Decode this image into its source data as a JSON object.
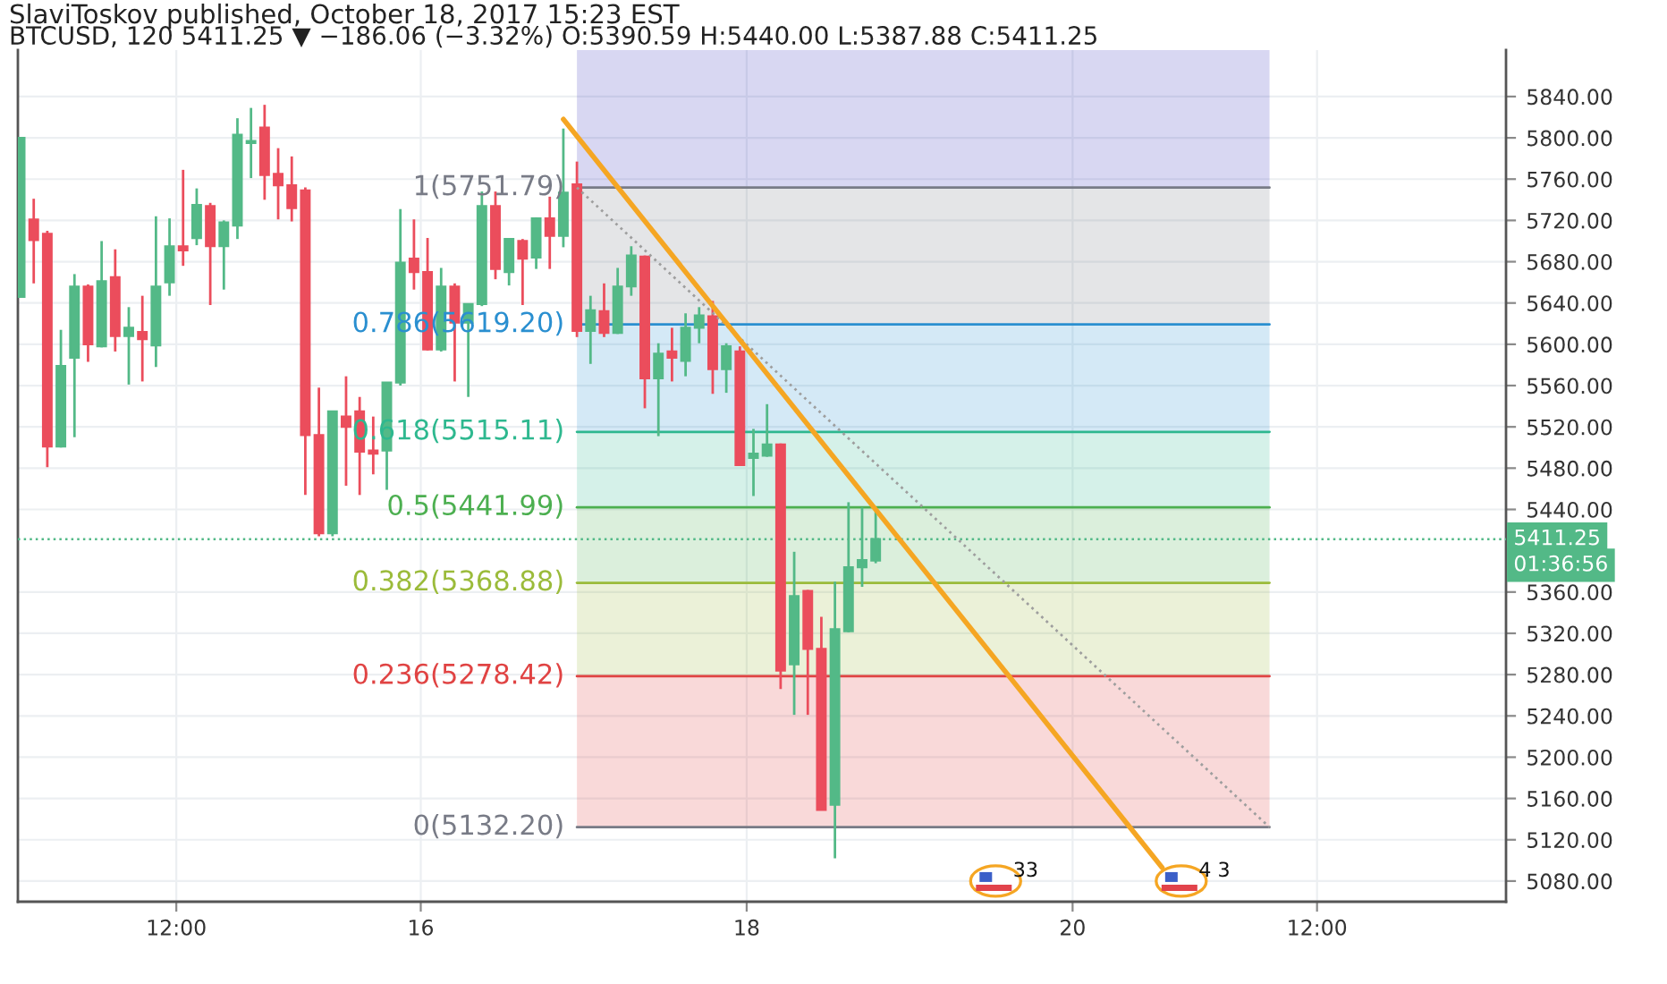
{
  "chart_data": {
    "type": "candlestick",
    "title": "SlaviToskov published, October 18, 2017 15:23 EST",
    "subtitle": "BTCUSD, 120 5411.25 ▼ −186.06 (−3.32%) O:5390.59 H:5440.00 L:5387.88 C:5411.25",
    "x": [
      "2017-10-13T13:00",
      "2017-10-13T15:00",
      "2017-10-13T17:00",
      "2017-10-13T19:00",
      "2017-10-13T21:00",
      "2017-10-13T23:00",
      "2017-10-14T01:00",
      "2017-10-14T03:00",
      "2017-10-14T05:00",
      "2017-10-14T07:00",
      "2017-10-14T09:00",
      "2017-10-14T11:00",
      "2017-10-14T13:00",
      "2017-10-14T15:00",
      "2017-10-14T17:00",
      "2017-10-14T19:00",
      "2017-10-14T21:00",
      "2017-10-14T23:00",
      "2017-10-15T01:00",
      "2017-10-15T03:00",
      "2017-10-15T05:00",
      "2017-10-15T07:00",
      "2017-10-15T09:00",
      "2017-10-15T11:00",
      "2017-10-15T13:00",
      "2017-10-15T15:00",
      "2017-10-15T17:00",
      "2017-10-15T19:00",
      "2017-10-15T21:00",
      "2017-10-15T23:00",
      "2017-10-16T01:00",
      "2017-10-16T03:00",
      "2017-10-16T05:00",
      "2017-10-16T07:00",
      "2017-10-16T09:00",
      "2017-10-16T11:00",
      "2017-10-16T13:00",
      "2017-10-16T15:00",
      "2017-10-16T17:00",
      "2017-10-16T19:00",
      "2017-10-16T21:00",
      "2017-10-16T23:00",
      "2017-10-17T01:00",
      "2017-10-17T03:00",
      "2017-10-17T05:00",
      "2017-10-17T07:00",
      "2017-10-17T09:00",
      "2017-10-17T11:00",
      "2017-10-17T13:00",
      "2017-10-17T15:00",
      "2017-10-17T17:00",
      "2017-10-17T19:00",
      "2017-10-17T21:00",
      "2017-10-17T23:00",
      "2017-10-18T01:00",
      "2017-10-18T03:00",
      "2017-10-18T05:00",
      "2017-10-18T07:00",
      "2017-10-18T09:00",
      "2017-10-18T11:00",
      "2017-10-18T13:00",
      "2017-10-18T15:00",
      "2017-10-18T17:00",
      "2017-10-18T19:00"
    ],
    "ohlc": [
      [
        5646,
        5800,
        5646,
        5800
      ],
      [
        5721,
        5741,
        5659,
        5701
      ],
      [
        5707,
        5710,
        5481,
        5501
      ],
      [
        5501,
        5614,
        5500,
        5579
      ],
      [
        5587,
        5668,
        5510,
        5656
      ],
      [
        5656,
        5658,
        5583,
        5600
      ],
      [
        5598,
        5700,
        5597,
        5661
      ],
      [
        5665,
        5692,
        5593,
        5608
      ],
      [
        5608,
        5636,
        5561,
        5616
      ],
      [
        5612,
        5647,
        5564,
        5605
      ],
      [
        5599,
        5724,
        5578,
        5656
      ],
      [
        5660,
        5722,
        5647,
        5695
      ],
      [
        5695,
        5769,
        5676,
        5691
      ],
      [
        5703,
        5751,
        5696,
        5735
      ],
      [
        5734,
        5737,
        5638,
        5695
      ],
      [
        5695,
        5720,
        5653,
        5718
      ],
      [
        5715,
        5819,
        5702,
        5803
      ],
      [
        5795,
        5829,
        5761,
        5797
      ],
      [
        5810,
        5832,
        5740,
        5764
      ],
      [
        5765,
        5790,
        5721,
        5754
      ],
      [
        5754,
        5782,
        5719,
        5732
      ],
      [
        5749,
        5752,
        5454,
        5512
      ],
      [
        5512,
        5558,
        5414,
        5417
      ],
      [
        5417,
        5535,
        5414,
        5535
      ],
      [
        5530,
        5569,
        5463,
        5520
      ],
      [
        5535,
        5549,
        5454,
        5496
      ],
      [
        5497,
        5530,
        5474,
        5494
      ],
      [
        5497,
        5563,
        5459,
        5563
      ],
      [
        5563,
        5731,
        5560,
        5679
      ],
      [
        5683,
        5721,
        5653,
        5670
      ],
      [
        5670,
        5703,
        5594,
        5595
      ],
      [
        5595,
        5674,
        5593,
        5656
      ],
      [
        5656,
        5659,
        5564,
        5621
      ],
      [
        5621,
        5639,
        5549,
        5639
      ],
      [
        5639,
        5748,
        5637,
        5734
      ],
      [
        5734,
        5748,
        5663,
        5673
      ],
      [
        5670,
        5703,
        5657,
        5702
      ],
      [
        5700,
        5702,
        5638,
        5683
      ],
      [
        5684,
        5723,
        5673,
        5722
      ],
      [
        5722,
        5743,
        5673,
        5705
      ],
      [
        5705,
        5809,
        5694,
        5747
      ],
      [
        5755,
        5777,
        5607,
        5613
      ],
      [
        5613,
        5647,
        5581,
        5633
      ],
      [
        5632,
        5659,
        5607,
        5611
      ],
      [
        5611,
        5674,
        5610,
        5656
      ],
      [
        5656,
        5695,
        5647,
        5686
      ],
      [
        5685,
        5686,
        5538,
        5567
      ],
      [
        5567,
        5601,
        5511,
        5591
      ],
      [
        5593,
        5616,
        5564,
        5587
      ],
      [
        5584,
        5630,
        5569,
        5616
      ],
      [
        5616,
        5636,
        5601,
        5628
      ],
      [
        5627,
        5642,
        5552,
        5576
      ],
      [
        5576,
        5601,
        5553,
        5598
      ],
      [
        5593,
        5598,
        5483,
        5483
      ],
      [
        5490,
        5518,
        5453,
        5494
      ],
      [
        5492,
        5542,
        5491,
        5503
      ],
      [
        5503,
        5504,
        5266,
        5284
      ],
      [
        5290,
        5399,
        5241,
        5356
      ],
      [
        5361,
        5362,
        5241,
        5305
      ],
      [
        5305,
        5336,
        5149,
        5149
      ],
      [
        5154,
        5370,
        5102,
        5324
      ],
      [
        5322,
        5447,
        5321,
        5384
      ],
      [
        5384,
        5442,
        5365,
        5391
      ],
      [
        5390.59,
        5440.0,
        5387.88,
        5411.25
      ]
    ],
    "colors": [
      "#53b987",
      "#eb4d5c",
      "#eb4d5c",
      "#53b987",
      "#53b987",
      "#eb4d5c",
      "#53b987",
      "#eb4d5c",
      "#53b987",
      "#eb4d5c",
      "#53b987",
      "#53b987",
      "#eb4d5c",
      "#53b987",
      "#eb4d5c",
      "#53b987",
      "#53b987",
      "#53b987",
      "#eb4d5c",
      "#eb4d5c",
      "#eb4d5c",
      "#eb4d5c",
      "#eb4d5c",
      "#53b987",
      "#eb4d5c",
      "#eb4d5c",
      "#eb4d5c",
      "#53b987",
      "#53b987",
      "#eb4d5c",
      "#eb4d5c",
      "#53b987",
      "#eb4d5c",
      "#53b987",
      "#53b987",
      "#eb4d5c",
      "#53b987",
      "#eb4d5c",
      "#53b987",
      "#eb4d5c",
      "#53b987",
      "#eb4d5c",
      "#53b987",
      "#eb4d5c",
      "#53b987",
      "#53b987",
      "#eb4d5c",
      "#53b987",
      "#eb4d5c",
      "#53b987",
      "#53b987",
      "#eb4d5c",
      "#53b987",
      "#eb4d5c",
      "#53b987",
      "#53b987",
      "#eb4d5c",
      "#53b987",
      "#eb4d5c",
      "#eb4d5c",
      "#53b987",
      "#53b987",
      "#53b987",
      "#53b987"
    ],
    "series": [
      {
        "type": "line",
        "x": [
          "2017-10-16T23:00",
          "2017-10-21T05:00"
        ],
        "values": [
          null,
          null
        ],
        "lower": [
          5751.79,
          5751.79
        ],
        "upper": [
          5885,
          5885
        ],
        "color": "#3c37c0"
      },
      {
        "type": "line",
        "name": "1(5751.79)",
        "x": [
          "2017-10-16T23:00",
          "2017-10-21T05:00"
        ],
        "values": [
          5751.79,
          5751.79
        ],
        "lower": [
          5619.2,
          5619.2
        ],
        "upper": [
          5751.79,
          5751.79
        ],
        "color": "#787b86"
      },
      {
        "type": "line",
        "name": "0.786(5619.20)",
        "x": [
          "2017-10-16T23:00",
          "2017-10-21T05:00"
        ],
        "values": [
          5619.2,
          5619.2
        ],
        "lower": [
          5515.11,
          5515.11
        ],
        "upper": [
          5619.2,
          5619.2
        ],
        "color": "#2a8fd0"
      },
      {
        "type": "line",
        "name": "0.618(5515.11)",
        "x": [
          "2017-10-16T23:00",
          "2017-10-21T05:00"
        ],
        "values": [
          5515.11,
          5515.11
        ],
        "lower": [
          5441.99,
          5441.99
        ],
        "upper": [
          5515.11,
          5515.11
        ],
        "color": "#2eb88f"
      },
      {
        "type": "line",
        "name": "0.5(5441.99)",
        "x": [
          "2017-10-16T23:00",
          "2017-10-21T05:00"
        ],
        "values": [
          5441.99,
          5441.99
        ],
        "lower": [
          5368.88,
          5368.88
        ],
        "upper": [
          5441.99,
          5441.99
        ],
        "color": "#4caf50"
      },
      {
        "type": "line",
        "name": "0.382(5368.88)",
        "x": [
          "2017-10-16T23:00",
          "2017-10-21T05:00"
        ],
        "values": [
          5368.88,
          5368.88
        ],
        "lower": [
          5278.42,
          5278.42
        ],
        "upper": [
          5368.88,
          5368.88
        ],
        "color": "#9bbb3a"
      },
      {
        "type": "line",
        "name": "0.236(5278.42)",
        "x": [
          "2017-10-16T23:00",
          "2017-10-21T05:00"
        ],
        "values": [
          5278.42,
          5278.42
        ],
        "lower": [
          5132.2,
          5132.2
        ],
        "upper": [
          5278.42,
          5278.42
        ],
        "color": "#e04343"
      },
      {
        "type": "line",
        "name": "0(5132.20)",
        "x": [
          "2017-10-16T23:00",
          "2017-10-21T05:00"
        ],
        "values": [
          5132.2,
          5132.2
        ],
        "color": "#787b86"
      },
      {
        "type": "line",
        "x": [
          "2017-10-16T23:00",
          "2017-10-21T05:00"
        ],
        "values": [
          5751.79,
          5132.2
        ],
        "color": "#9e9e9e",
        "line_style": "dotted"
      },
      {
        "type": "line",
        "x": [
          "2017-10-16T21:00",
          "2017-10-20T13:12"
        ],
        "values": [
          5818,
          5093
        ],
        "color": "#f5a623"
      }
    ],
    "ref_lines": [
      {
        "axis": "y",
        "value": 5411.25,
        "label": "5411.25",
        "color": "#53b987",
        "line_style": "dotted"
      }
    ],
    "annotations": [
      "01:36:56",
      {
        "text": "33",
        "x": "2017-10-19T12:40",
        "y": 5080
      },
      {
        "text": "4 3",
        "x": "2017-10-20T16:00",
        "y": 5080
      }
    ],
    "xlim": [
      "2017-10-13T12:40",
      "2017-10-22T15:50"
    ],
    "xticks": [
      {
        "value": "2017-10-14T12:00",
        "label": "12:00"
      },
      {
        "value": "2017-10-16T00:00",
        "label": "16"
      },
      {
        "value": "2017-10-18T00:00",
        "label": "18"
      },
      {
        "value": "2017-10-20T00:00",
        "label": "20"
      },
      {
        "value": "2017-10-21T12:00",
        "label": "12:00"
      }
    ],
    "ylim": [
      5060,
      5885
    ],
    "yticks": [
      {
        "value": 5080,
        "label": "5080.00"
      },
      {
        "value": 5120,
        "label": "5120.00"
      },
      {
        "value": 5160,
        "label": "5160.00"
      },
      {
        "value": 5200,
        "label": "5200.00"
      },
      {
        "value": 5240,
        "label": "5240.00"
      },
      {
        "value": 5280,
        "label": "5280.00"
      },
      {
        "value": 5320,
        "label": "5320.00"
      },
      {
        "value": 5360,
        "label": "5360.00"
      },
      {
        "value": 5440,
        "label": "5440.00"
      },
      {
        "value": 5480,
        "label": "5480.00"
      },
      {
        "value": 5520,
        "label": "5520.00"
      },
      {
        "value": 5560,
        "label": "5560.00"
      },
      {
        "value": 5600,
        "label": "5600.00"
      },
      {
        "value": 5640,
        "label": "5640.00"
      },
      {
        "value": 5680,
        "label": "5680.00"
      },
      {
        "value": 5720,
        "label": "5720.00"
      },
      {
        "value": 5760,
        "label": "5760.00"
      },
      {
        "value": 5800,
        "label": "5800.00"
      },
      {
        "value": 5840,
        "label": "5840.00"
      }
    ],
    "grid": true
  }
}
